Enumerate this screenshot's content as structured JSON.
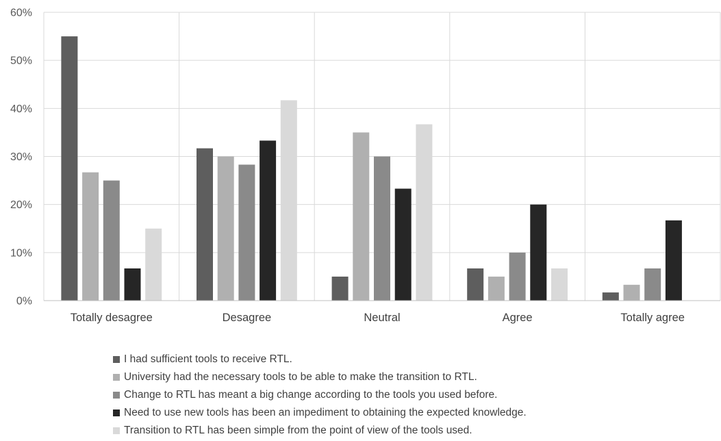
{
  "chart_data": {
    "type": "bar",
    "title": "",
    "xlabel": "",
    "ylabel": "",
    "ylim": [
      0,
      60
    ],
    "y_tick_labels": [
      "0%",
      "10%",
      "20%",
      "30%",
      "40%",
      "50%",
      "60%"
    ],
    "y_ticks": [
      0,
      10,
      20,
      30,
      40,
      50,
      60
    ],
    "grid": true,
    "legend_position": "bottom",
    "categories": [
      "Totally desagree",
      "Desagree",
      "Neutral",
      "Agree",
      "Totally agree"
    ],
    "series": [
      {
        "name": "I had sufficient tools to receive RTL.",
        "color": "#5e5e5e",
        "values": [
          55,
          31.7,
          5,
          6.7,
          1.7
        ]
      },
      {
        "name": "University had the necessary tools to be able to make the transition to RTL.",
        "color": "#b0b0b0",
        "values": [
          26.7,
          30,
          35,
          5,
          3.3
        ]
      },
      {
        "name": "Change to RTL has meant a big change according to the tools you used before.",
        "color": "#8a8a8a",
        "values": [
          25,
          28.3,
          30,
          10,
          6.7
        ]
      },
      {
        "name": "Need to use new tools has been an impediment to obtaining the expected knowledge.",
        "color": "#262626",
        "values": [
          6.7,
          33.3,
          23.3,
          20,
          16.7
        ]
      },
      {
        "name": "Transition to RTL has been simple from the point of view of the tools used.",
        "color": "#d9d9d9",
        "values": [
          15,
          41.7,
          36.7,
          6.7,
          0
        ]
      }
    ]
  }
}
